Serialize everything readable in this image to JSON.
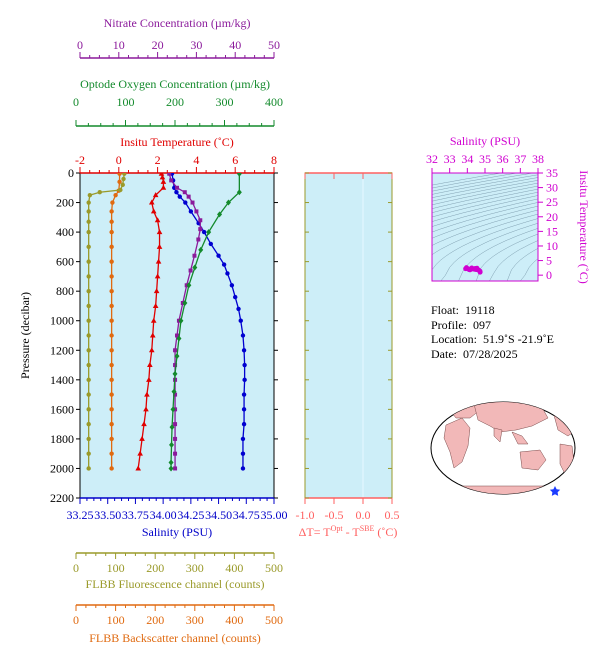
{
  "chart_data": [
    {
      "type": "line",
      "panel": "profile",
      "ylabel": "Pressure (decibar)",
      "ylim": [
        2200,
        0
      ],
      "yticks": [
        "0",
        "200",
        "400",
        "600",
        "800",
        "1000",
        "1200",
        "1400",
        "1600",
        "1800",
        "2000",
        "2200"
      ],
      "axes": {
        "nitrate": {
          "label": "Nitrate Concentration (µm/kg)",
          "range": [
            0,
            50
          ],
          "ticks": [
            "0",
            "10",
            "20",
            "30",
            "40",
            "50"
          ],
          "color": "#8b1a9b"
        },
        "oxygen": {
          "label": "Optode Oxygen Concentration (µm/kg)",
          "range": [
            0,
            400
          ],
          "ticks": [
            "0",
            "100",
            "200",
            "300",
            "400"
          ],
          "color": "#138a2c"
        },
        "temperature": {
          "label": "Insitu Temperature (˚C)",
          "range": [
            -2,
            8
          ],
          "ticks": [
            "-2",
            "0",
            "2",
            "4",
            "6",
            "8"
          ],
          "color": "#e00000"
        },
        "salinity": {
          "label": "Salinity (PSU)",
          "range": [
            33.25,
            35.0
          ],
          "ticks": [
            "33.25",
            "33.50",
            "33.75",
            "34.00",
            "34.25",
            "34.50",
            "34.75",
            "35.00"
          ],
          "color": "#0000c8"
        },
        "fluorescence": {
          "label": "FLBB Fluorescence channel (counts)",
          "range": [
            0,
            500
          ],
          "ticks": [
            "0",
            "100",
            "200",
            "300",
            "400",
            "500"
          ],
          "color": "#9a9a2a"
        },
        "backscatter": {
          "label": "FLBB Backscatter channel (counts)",
          "range": [
            0,
            500
          ],
          "ticks": [
            "0",
            "100",
            "200",
            "300",
            "400",
            "500"
          ],
          "color": "#e06a10"
        }
      },
      "series": [
        {
          "axis": "salinity",
          "marker": "circle",
          "color": "#0000d0",
          "points": [
            [
              34.08,
              5
            ],
            [
              34.09,
              50
            ],
            [
              34.1,
              100
            ],
            [
              34.12,
              130
            ],
            [
              34.15,
              160
            ],
            [
              34.2,
              200
            ],
            [
              34.25,
              260
            ],
            [
              34.32,
              340
            ],
            [
              34.37,
              400
            ],
            [
              34.43,
              480
            ],
            [
              34.5,
              560
            ],
            [
              34.55,
              620
            ],
            [
              34.58,
              680
            ],
            [
              34.62,
              760
            ],
            [
              34.65,
              840
            ],
            [
              34.68,
              920
            ],
            [
              34.7,
              1000
            ],
            [
              34.72,
              1100
            ],
            [
              34.73,
              1200
            ],
            [
              34.735,
              1300
            ],
            [
              34.735,
              1400
            ],
            [
              34.73,
              1500
            ],
            [
              34.73,
              1600
            ],
            [
              34.73,
              1700
            ],
            [
              34.72,
              1800
            ],
            [
              34.72,
              1900
            ],
            [
              34.72,
              2000
            ]
          ]
        },
        {
          "axis": "nitrate",
          "marker": "square",
          "color": "#8b1a9b",
          "points": [
            [
              23,
              5
            ],
            [
              23.5,
              50
            ],
            [
              25,
              100
            ],
            [
              27,
              130
            ],
            [
              28,
              160
            ],
            [
              29,
              200
            ],
            [
              30,
              260
            ],
            [
              31,
              320
            ],
            [
              31,
              380
            ],
            [
              30.5,
              450
            ],
            [
              29.5,
              560
            ],
            [
              28.5,
              660
            ],
            [
              27.5,
              760
            ],
            [
              26.5,
              880
            ],
            [
              25.5,
              1000
            ],
            [
              25,
              1100
            ],
            [
              24.5,
              1200
            ],
            [
              24.5,
              1300
            ],
            [
              24.5,
              1400
            ],
            [
              24.5,
              1500
            ],
            [
              24.5,
              1600
            ],
            [
              24.5,
              1700
            ],
            [
              24.5,
              1800
            ],
            [
              24.5,
              1900
            ],
            [
              24.5,
              2000
            ]
          ]
        },
        {
          "axis": "temperature",
          "marker": "triangle",
          "color": "#e00000",
          "points": [
            [
              2.2,
              5
            ],
            [
              2.25,
              30
            ],
            [
              2.3,
              60
            ],
            [
              2.3,
              100
            ],
            [
              1.9,
              150
            ],
            [
              1.7,
              200
            ],
            [
              1.8,
              260
            ],
            [
              2.0,
              320
            ],
            [
              2.1,
              400
            ],
            [
              2.1,
              500
            ],
            [
              2.05,
              600
            ],
            [
              2.0,
              700
            ],
            [
              1.95,
              800
            ],
            [
              1.9,
              900
            ],
            [
              1.8,
              1000
            ],
            [
              1.75,
              1100
            ],
            [
              1.7,
              1200
            ],
            [
              1.6,
              1300
            ],
            [
              1.55,
              1400
            ],
            [
              1.45,
              1500
            ],
            [
              1.4,
              1600
            ],
            [
              1.3,
              1700
            ],
            [
              1.2,
              1800
            ],
            [
              1.1,
              1900
            ],
            [
              1.0,
              2000
            ]
          ]
        },
        {
          "axis": "oxygen",
          "marker": "diamond",
          "color": "#138a2c",
          "points": [
            [
              330,
              5
            ],
            [
              330,
              130
            ],
            [
              308,
              200
            ],
            [
              290,
              280
            ],
            [
              268,
              400
            ],
            [
              252,
              520
            ],
            [
              240,
              640
            ],
            [
              228,
              760
            ],
            [
              220,
              880
            ],
            [
              212,
              1000
            ],
            [
              208,
              1120
            ],
            [
              204,
              1240
            ],
            [
              200,
              1360
            ],
            [
              198,
              1480
            ],
            [
              196,
              1600
            ],
            [
              194,
              1720
            ],
            [
              193,
              1840
            ],
            [
              192,
              1960
            ],
            [
              192,
              2000
            ]
          ]
        },
        {
          "axis": "backscatter",
          "marker": "circle",
          "color": "#e06a10",
          "points": [
            [
              110,
              5
            ],
            [
              110,
              60
            ],
            [
              108,
              120
            ],
            [
              100,
              150
            ],
            [
              92,
              200
            ],
            [
              90,
              260
            ],
            [
              90,
              330
            ],
            [
              90,
              400
            ],
            [
              90,
              500
            ],
            [
              90,
              600
            ],
            [
              90,
              700
            ],
            [
              90,
              800
            ],
            [
              90,
              900
            ],
            [
              90,
              1000
            ],
            [
              90,
              1100
            ],
            [
              90,
              1200
            ],
            [
              90,
              1300
            ],
            [
              90,
              1400
            ],
            [
              90,
              1500
            ],
            [
              90,
              1600
            ],
            [
              90,
              1700
            ],
            [
              90,
              1800
            ],
            [
              90,
              1900
            ],
            [
              90,
              2000
            ]
          ]
        },
        {
          "axis": "fluorescence",
          "marker": "circle",
          "color": "#9a9a2a",
          "points": [
            [
              122,
              5
            ],
            [
              120,
              40
            ],
            [
              118,
              80
            ],
            [
              112,
              115
            ],
            [
              60,
              130
            ],
            [
              35,
              150
            ],
            [
              32,
              200
            ],
            [
              32,
              260
            ],
            [
              32,
              330
            ],
            [
              32,
              400
            ],
            [
              32,
              500
            ],
            [
              32,
              600
            ],
            [
              32,
              700
            ],
            [
              32,
              800
            ],
            [
              32,
              900
            ],
            [
              32,
              1000
            ],
            [
              32,
              1100
            ],
            [
              32,
              1200
            ],
            [
              32,
              1300
            ],
            [
              32,
              1400
            ],
            [
              32,
              1500
            ],
            [
              32,
              1600
            ],
            [
              32,
              1700
            ],
            [
              32,
              1800
            ],
            [
              32,
              1900
            ],
            [
              32,
              2000
            ]
          ]
        }
      ]
    },
    {
      "type": "line",
      "panel": "delta_t",
      "xlabel": "ΔT= T",
      "xlabel_sup1": "Opt",
      "xlabel_mid": " - T",
      "xlabel_sup2": "SBE",
      "xlabel_end": " (˚C)",
      "xlim": [
        -1.0,
        0.5
      ],
      "xticks": [
        "-1.0",
        "-0.5",
        "0.0",
        "0.5"
      ],
      "ylim": [
        2200,
        0
      ],
      "series": []
    },
    {
      "type": "scatter",
      "panel": "ts_diagram",
      "title": "Salinity (PSU)",
      "ylabel": "Insitu Temperature (˚C)",
      "xlim": [
        32,
        38
      ],
      "xticks": [
        "32",
        "33",
        "34",
        "35",
        "36",
        "37",
        "38"
      ],
      "ylim": [
        -2,
        35
      ],
      "yticks": [
        "0",
        "5",
        "10",
        "15",
        "20",
        "25",
        "30",
        "35"
      ],
      "color": "#d000d0",
      "points": [
        [
          33.9,
          2.2
        ],
        [
          34.0,
          2.3
        ],
        [
          34.05,
          2.1
        ],
        [
          34.1,
          1.9
        ],
        [
          34.15,
          1.8
        ],
        [
          34.2,
          2.1
        ],
        [
          34.3,
          2.1
        ],
        [
          34.4,
          2.0
        ],
        [
          34.5,
          1.9
        ],
        [
          34.6,
          1.8
        ],
        [
          34.65,
          1.7
        ],
        [
          34.7,
          1.5
        ],
        [
          34.72,
          1.3
        ],
        [
          34.73,
          1.1
        ],
        [
          34.72,
          1.0
        ],
        [
          33.95,
          2.6
        ],
        [
          34.25,
          2.5
        ],
        [
          34.45,
          2.3
        ],
        [
          34.55,
          2.4
        ]
      ]
    }
  ],
  "info": {
    "float_label": "Float:",
    "float_value": "19118",
    "profile_label": "Profile:",
    "profile_value": "097",
    "location_label": "Location:",
    "location_value": "51.9˚S  -21.9˚E",
    "date_label": "Date:",
    "date_value": "07/28/2025"
  },
  "colors": {
    "panel_bg": "#cdeef8",
    "map_land": "#f2b8b8",
    "map_ocean": "#ffffff",
    "marker": "#1c3cff"
  }
}
